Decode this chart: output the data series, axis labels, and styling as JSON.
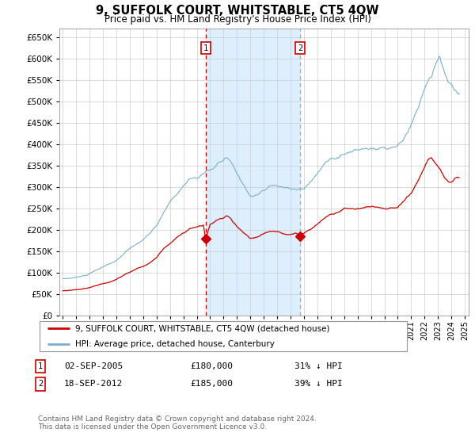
{
  "title": "9, SUFFOLK COURT, WHITSTABLE, CT5 4QW",
  "subtitle": "Price paid vs. HM Land Registry's House Price Index (HPI)",
  "ylim": [
    0,
    670000
  ],
  "yticks": [
    0,
    50000,
    100000,
    150000,
    200000,
    250000,
    300000,
    350000,
    400000,
    450000,
    500000,
    550000,
    600000,
    650000
  ],
  "grid_color": "#cccccc",
  "sale1_date_label": "02-SEP-2005",
  "sale1_x": 2005.67,
  "sale1_price": 180000,
  "sale1_pct": "31% ↓ HPI",
  "sale2_date_label": "18-SEP-2012",
  "sale2_x": 2012.72,
  "sale2_price": 185000,
  "sale2_pct": "39% ↓ HPI",
  "legend_house_label": "9, SUFFOLK COURT, WHITSTABLE, CT5 4QW (detached house)",
  "legend_hpi_label": "HPI: Average price, detached house, Canterbury",
  "footer": "Contains HM Land Registry data © Crown copyright and database right 2024.\nThis data is licensed under the Open Government Licence v3.0.",
  "house_color": "#cc0000",
  "hpi_color": "#7aadcf",
  "shade_color": "#ddeeff",
  "vline1_color": "#cc0000",
  "vline2_color": "#aaaaaa"
}
